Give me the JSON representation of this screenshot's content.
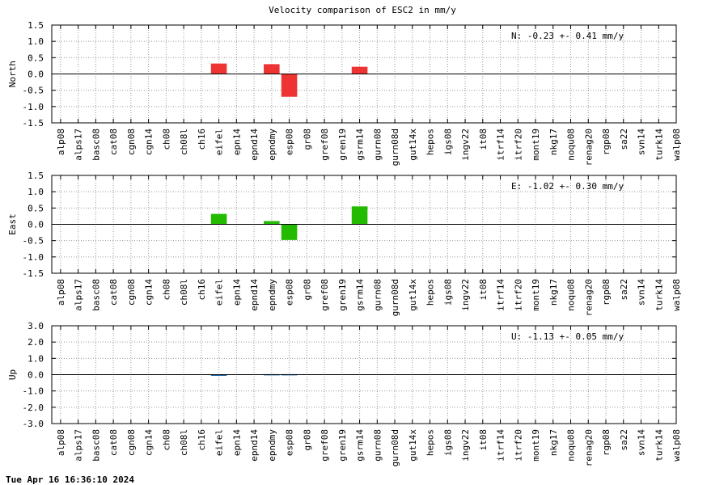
{
  "title": "Velocity comparison of ESC2 in mm/y",
  "timestamp": "Tue Apr 16 16:36:10 2024",
  "chart_data": [
    {
      "type": "bar",
      "ylabel": "North",
      "ylim": [
        -1.5,
        1.5
      ],
      "yticks": [
        "1.5",
        "1.0",
        "0.5",
        "0.0",
        "-0.5",
        "-1.0",
        "-1.5"
      ],
      "grid": true,
      "color": "#ee3333",
      "stat": "N:  -0.23 +-  0.41 mm/y",
      "categories": [
        "alp08",
        "alps17",
        "basc08",
        "cat08",
        "cgn08",
        "cgn14",
        "ch08",
        "ch08l",
        "ch16",
        "eifel",
        "epn14",
        "epnd14",
        "epndmy",
        "esp08",
        "gr08",
        "gref08",
        "gren19",
        "gsrm14",
        "gurn08",
        "gurn08d",
        "gut14x",
        "hepos",
        "igs08",
        "ingv22",
        "it08",
        "itrf14",
        "itrf20",
        "mont19",
        "nkg17",
        "noqu08",
        "renag20",
        "rgp08",
        "sa22",
        "svn14",
        "turk14",
        "walp08"
      ],
      "values": [
        0,
        0,
        0,
        0,
        0,
        0,
        0,
        0,
        0,
        0.32,
        0,
        0,
        0.3,
        -0.7,
        0,
        0,
        0,
        0.22,
        0,
        0,
        0,
        0,
        0,
        0,
        0,
        0,
        0,
        0,
        0,
        0,
        0,
        0,
        0,
        0,
        0,
        0
      ]
    },
    {
      "type": "bar",
      "ylabel": "East",
      "ylim": [
        -1.5,
        1.5
      ],
      "yticks": [
        "1.5",
        "1.0",
        "0.5",
        "0.0",
        "-0.5",
        "-1.0",
        "-1.5"
      ],
      "grid": true,
      "color": "#22bb00",
      "stat": "E:  -1.02 +-  0.30 mm/y",
      "categories": [
        "alp08",
        "alps17",
        "basc08",
        "cat08",
        "cgn08",
        "cgn14",
        "ch08",
        "ch08l",
        "ch16",
        "eifel",
        "epn14",
        "epnd14",
        "epndmy",
        "esp08",
        "gr08",
        "gref08",
        "gren19",
        "gsrm14",
        "gurn08",
        "gurn08d",
        "gut14x",
        "hepos",
        "igs08",
        "ingv22",
        "it08",
        "itrf14",
        "itrf20",
        "mont19",
        "nkg17",
        "noqu08",
        "renag20",
        "rgp08",
        "sa22",
        "svn14",
        "turk14",
        "walp08"
      ],
      "values": [
        0,
        0,
        0,
        0,
        0,
        0,
        0,
        0,
        0,
        0.32,
        0,
        0,
        0.1,
        -0.48,
        0,
        0,
        0,
        0.55,
        0,
        0,
        0,
        0,
        0,
        0,
        0,
        0,
        0,
        0,
        0,
        0,
        0,
        0,
        0,
        0,
        0,
        0
      ]
    },
    {
      "type": "bar",
      "ylabel": "Up",
      "ylim": [
        -3.0,
        3.0
      ],
      "yticks": [
        "3.0",
        "2.0",
        "1.0",
        "0.0",
        "-1.0",
        "-2.0",
        "-3.0"
      ],
      "grid": true,
      "color": "#1a66b3",
      "stat": "U:  -1.13 +-  0.05 mm/y",
      "categories": [
        "alp08",
        "alps17",
        "basc08",
        "cat08",
        "cgn08",
        "cgn14",
        "ch08",
        "ch08l",
        "ch16",
        "eifel",
        "epn14",
        "epnd14",
        "epndmy",
        "esp08",
        "gr08",
        "gref08",
        "gren19",
        "gsrm14",
        "gurn08",
        "gurn08d",
        "gut14x",
        "hepos",
        "igs08",
        "ingv22",
        "it08",
        "itrf14",
        "itrf20",
        "mont19",
        "nkg17",
        "noqu08",
        "renag20",
        "rgp08",
        "sa22",
        "svn14",
        "turk14",
        "walp08"
      ],
      "values": [
        0,
        0,
        0,
        0,
        0,
        0,
        0,
        0,
        0,
        -0.05,
        0,
        0,
        0.03,
        0.03,
        0,
        0,
        0,
        0,
        0,
        0,
        0,
        0,
        0,
        0,
        0,
        0,
        0,
        0,
        0,
        0,
        0,
        0,
        0,
        0,
        0,
        0
      ]
    }
  ]
}
